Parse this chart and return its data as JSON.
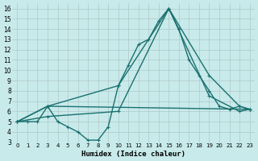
{
  "xlabel": "Humidex (Indice chaleur)",
  "background_color": "#c8eaea",
  "grid_color": "#b0c8c8",
  "line_color": "#1a7070",
  "xlim": [
    -0.5,
    23.5
  ],
  "ylim": [
    3,
    16.5
  ],
  "yticks": [
    3,
    4,
    5,
    6,
    7,
    8,
    9,
    10,
    11,
    12,
    13,
    14,
    15,
    16
  ],
  "xticks": [
    0,
    1,
    2,
    3,
    4,
    5,
    6,
    7,
    8,
    9,
    10,
    11,
    12,
    13,
    14,
    15,
    16,
    17,
    18,
    19,
    20,
    21,
    22,
    23
  ],
  "series1_x": [
    0,
    1,
    2,
    3,
    4,
    5,
    6,
    7,
    8,
    9,
    10,
    11,
    12,
    13,
    14,
    15,
    16,
    17,
    18,
    19,
    20,
    21,
    22,
    23
  ],
  "series1_y": [
    5.0,
    5.0,
    5.0,
    6.5,
    5.0,
    4.5,
    4.0,
    3.2,
    3.2,
    4.5,
    8.5,
    10.5,
    12.5,
    13.0,
    14.8,
    16.0,
    14.0,
    11.0,
    9.5,
    8.0,
    6.5,
    6.2,
    6.5,
    6.2
  ],
  "series2_x": [
    0,
    3,
    10,
    15,
    19,
    22,
    23
  ],
  "series2_y": [
    5.0,
    6.5,
    8.5,
    16.0,
    9.5,
    6.5,
    6.2
  ],
  "series3_x": [
    0,
    3,
    10,
    15,
    19,
    22,
    23
  ],
  "series3_y": [
    5.0,
    5.5,
    6.0,
    16.0,
    7.5,
    6.0,
    6.2
  ],
  "series4_x": [
    0,
    3,
    23
  ],
  "series4_y": [
    5.0,
    6.5,
    6.2
  ]
}
